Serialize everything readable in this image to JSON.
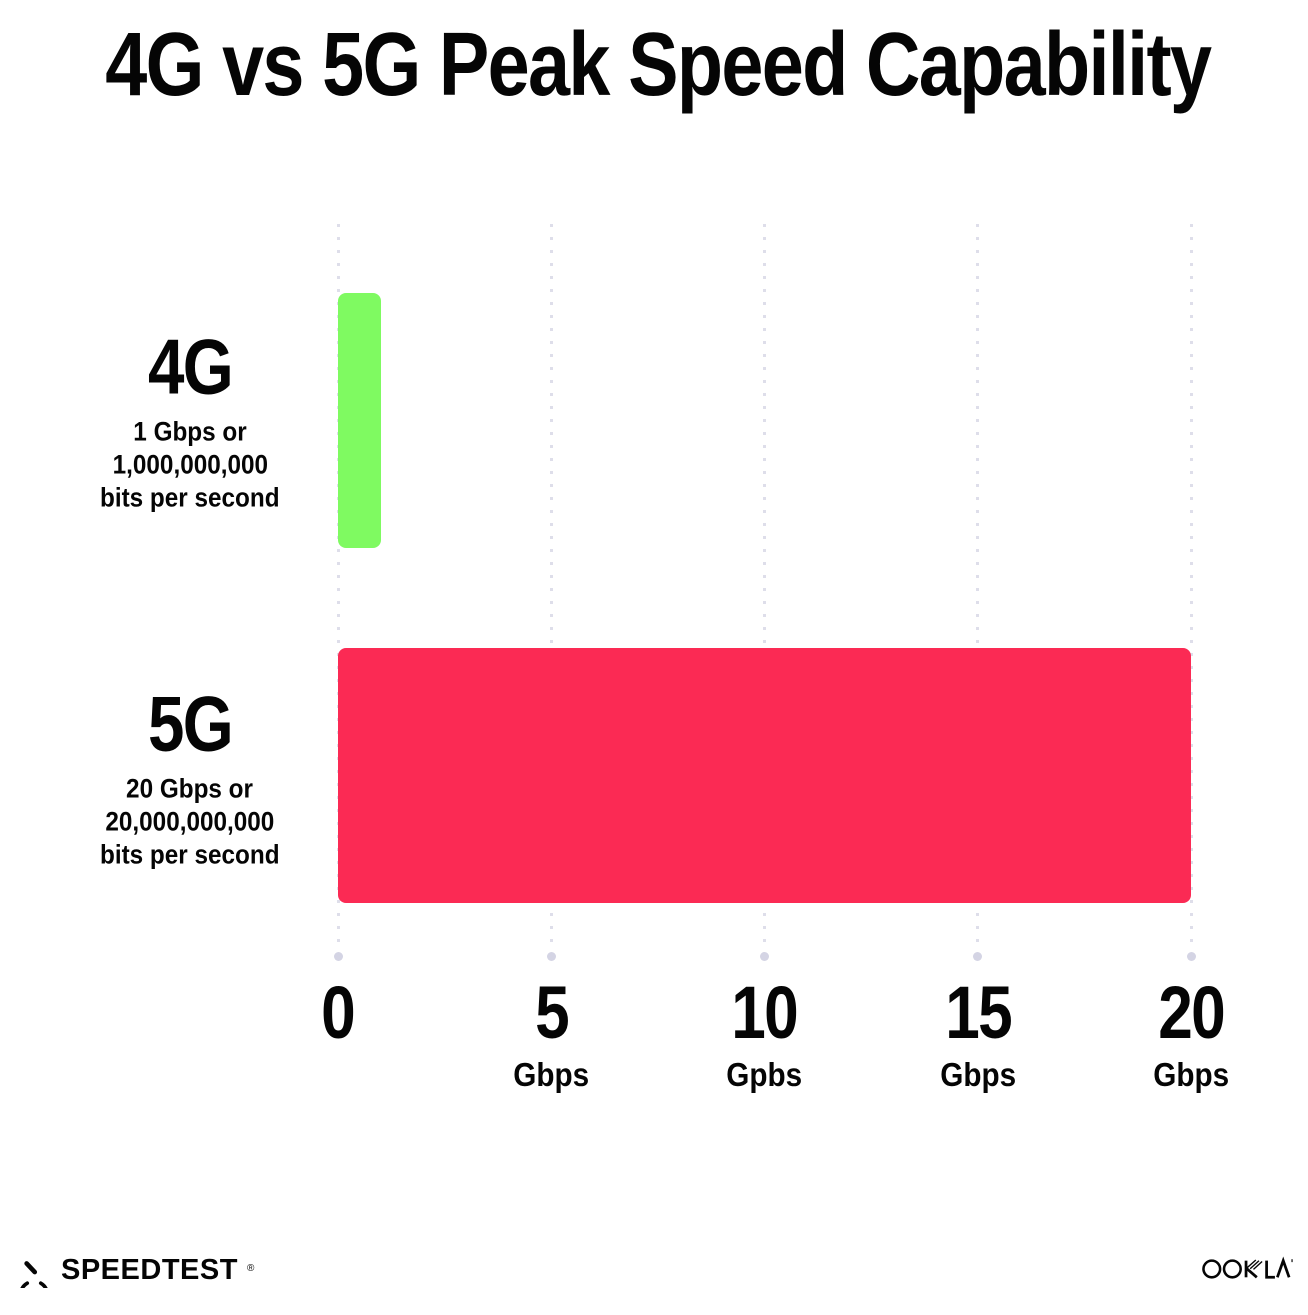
{
  "chart_data": {
    "type": "bar",
    "orientation": "horizontal",
    "title": "4G vs 5G Peak Speed Capability",
    "categories": [
      "4G",
      "5G"
    ],
    "values": [
      1,
      20
    ],
    "value_unit": "Gbps",
    "bar_colors": [
      "#7FFA61",
      "#FB2A54"
    ],
    "category_labels": [
      {
        "name": "4G",
        "sublines": [
          "1 Gbps or",
          "1,000,000,000",
          "bits per second"
        ]
      },
      {
        "name": "5G",
        "sublines": [
          "20 Gbps or",
          "20,000,000,000",
          "bits per second"
        ]
      }
    ],
    "xlabel": "",
    "ylabel": "",
    "xlim": [
      0,
      20
    ],
    "x_ticks": [
      {
        "value": 0,
        "label": "0",
        "unit": ""
      },
      {
        "value": 5,
        "label": "5",
        "unit": "Gbps"
      },
      {
        "value": 10,
        "label": "10",
        "unit": "Gpbs"
      },
      {
        "value": 15,
        "label": "15",
        "unit": "Gbps"
      },
      {
        "value": 20,
        "label": "20",
        "unit": "Gbps"
      }
    ],
    "grid": "vertical-dotted",
    "legend": "none"
  },
  "colors": {
    "background": "#FFFFFF",
    "text": "#050505",
    "bar_4g": "#7FFA61",
    "bar_5g": "#FB2A54",
    "gridline": "#DEDEEA",
    "grid_end_dot": "#D4D4E4"
  },
  "footer": {
    "speedtest_label": "SPEEDTEST",
    "speedtest_trademark": "®",
    "speedtest_icon": "gauge-icon",
    "ookla_label": "OOKLA",
    "ookla_trademark": "®"
  }
}
